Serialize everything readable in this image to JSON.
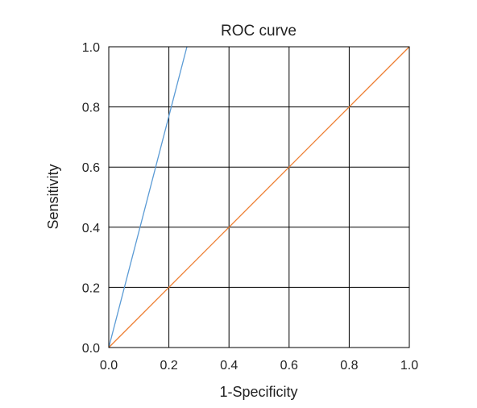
{
  "chart_data": {
    "type": "line",
    "title": "ROC curve",
    "xlabel": "1-Specificity",
    "ylabel": "Sensitivity",
    "xlim": [
      0,
      1
    ],
    "ylim": [
      0,
      1
    ],
    "x_ticks": [
      "0.0",
      "0.2",
      "0.4",
      "0.6",
      "0.8",
      "1.0"
    ],
    "y_ticks": [
      "0.0",
      "0.2",
      "0.4",
      "0.6",
      "0.8",
      "1.0"
    ],
    "grid": true,
    "series": [
      {
        "color": "#5b9bd5",
        "x": [
          0,
          0.26
        ],
        "y": [
          0,
          1
        ]
      },
      {
        "color": "#ed7d31",
        "x": [
          0,
          1
        ],
        "y": [
          0,
          1
        ]
      }
    ]
  }
}
